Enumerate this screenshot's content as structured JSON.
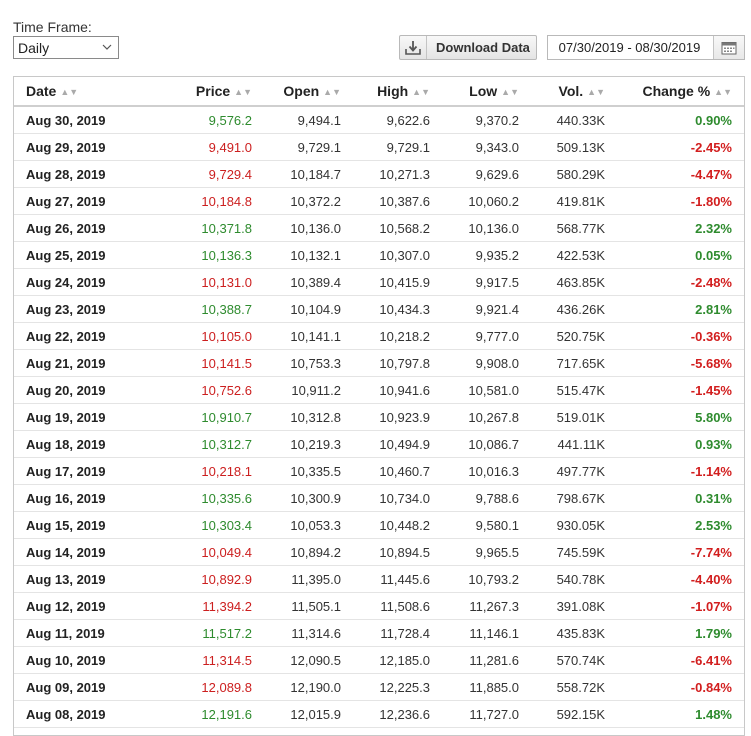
{
  "timeframe": {
    "label": "Time Frame:",
    "selected": "Daily"
  },
  "toolbar": {
    "download_label": "Download Data"
  },
  "date_range": {
    "value": "07/30/2019 - 08/30/2019"
  },
  "colors": {
    "up": "#2e8b2e",
    "down": "#cc1f1f"
  },
  "icons": {
    "download": "download-icon",
    "calendar": "calendar-icon",
    "dropdown": "chevron-down-icon",
    "sort": "sort-icon"
  },
  "table": {
    "headers": [
      "Date",
      "Price",
      "Open",
      "High",
      "Low",
      "Vol.",
      "Change %"
    ],
    "rows": [
      {
        "date": "Aug 30, 2019",
        "price": "9,576.2",
        "open": "9,494.1",
        "high": "9,622.6",
        "low": "9,370.2",
        "vol": "440.33K",
        "change": "0.90%",
        "dir": "up"
      },
      {
        "date": "Aug 29, 2019",
        "price": "9,491.0",
        "open": "9,729.1",
        "high": "9,729.1",
        "low": "9,343.0",
        "vol": "509.13K",
        "change": "-2.45%",
        "dir": "down"
      },
      {
        "date": "Aug 28, 2019",
        "price": "9,729.4",
        "open": "10,184.7",
        "high": "10,271.3",
        "low": "9,629.6",
        "vol": "580.29K",
        "change": "-4.47%",
        "dir": "down"
      },
      {
        "date": "Aug 27, 2019",
        "price": "10,184.8",
        "open": "10,372.2",
        "high": "10,387.6",
        "low": "10,060.2",
        "vol": "419.81K",
        "change": "-1.80%",
        "dir": "down"
      },
      {
        "date": "Aug 26, 2019",
        "price": "10,371.8",
        "open": "10,136.0",
        "high": "10,568.2",
        "low": "10,136.0",
        "vol": "568.77K",
        "change": "2.32%",
        "dir": "up"
      },
      {
        "date": "Aug 25, 2019",
        "price": "10,136.3",
        "open": "10,132.1",
        "high": "10,307.0",
        "low": "9,935.2",
        "vol": "422.53K",
        "change": "0.05%",
        "dir": "up"
      },
      {
        "date": "Aug 24, 2019",
        "price": "10,131.0",
        "open": "10,389.4",
        "high": "10,415.9",
        "low": "9,917.5",
        "vol": "463.85K",
        "change": "-2.48%",
        "dir": "down"
      },
      {
        "date": "Aug 23, 2019",
        "price": "10,388.7",
        "open": "10,104.9",
        "high": "10,434.3",
        "low": "9,921.4",
        "vol": "436.26K",
        "change": "2.81%",
        "dir": "up"
      },
      {
        "date": "Aug 22, 2019",
        "price": "10,105.0",
        "open": "10,141.1",
        "high": "10,218.2",
        "low": "9,777.0",
        "vol": "520.75K",
        "change": "-0.36%",
        "dir": "down"
      },
      {
        "date": "Aug 21, 2019",
        "price": "10,141.5",
        "open": "10,753.3",
        "high": "10,797.8",
        "low": "9,908.0",
        "vol": "717.65K",
        "change": "-5.68%",
        "dir": "down"
      },
      {
        "date": "Aug 20, 2019",
        "price": "10,752.6",
        "open": "10,911.2",
        "high": "10,941.6",
        "low": "10,581.0",
        "vol": "515.47K",
        "change": "-1.45%",
        "dir": "down"
      },
      {
        "date": "Aug 19, 2019",
        "price": "10,910.7",
        "open": "10,312.8",
        "high": "10,923.9",
        "low": "10,267.8",
        "vol": "519.01K",
        "change": "5.80%",
        "dir": "up"
      },
      {
        "date": "Aug 18, 2019",
        "price": "10,312.7",
        "open": "10,219.3",
        "high": "10,494.9",
        "low": "10,086.7",
        "vol": "441.11K",
        "change": "0.93%",
        "dir": "up"
      },
      {
        "date": "Aug 17, 2019",
        "price": "10,218.1",
        "open": "10,335.5",
        "high": "10,460.7",
        "low": "10,016.3",
        "vol": "497.77K",
        "change": "-1.14%",
        "dir": "down"
      },
      {
        "date": "Aug 16, 2019",
        "price": "10,335.6",
        "open": "10,300.9",
        "high": "10,734.0",
        "low": "9,788.6",
        "vol": "798.67K",
        "change": "0.31%",
        "dir": "up"
      },
      {
        "date": "Aug 15, 2019",
        "price": "10,303.4",
        "open": "10,053.3",
        "high": "10,448.2",
        "low": "9,580.1",
        "vol": "930.05K",
        "change": "2.53%",
        "dir": "up"
      },
      {
        "date": "Aug 14, 2019",
        "price": "10,049.4",
        "open": "10,894.2",
        "high": "10,894.5",
        "low": "9,965.5",
        "vol": "745.59K",
        "change": "-7.74%",
        "dir": "down"
      },
      {
        "date": "Aug 13, 2019",
        "price": "10,892.9",
        "open": "11,395.0",
        "high": "11,445.6",
        "low": "10,793.2",
        "vol": "540.78K",
        "change": "-4.40%",
        "dir": "down"
      },
      {
        "date": "Aug 12, 2019",
        "price": "11,394.2",
        "open": "11,505.1",
        "high": "11,508.6",
        "low": "11,267.3",
        "vol": "391.08K",
        "change": "-1.07%",
        "dir": "down"
      },
      {
        "date": "Aug 11, 2019",
        "price": "11,517.2",
        "open": "11,314.6",
        "high": "11,728.4",
        "low": "11,146.1",
        "vol": "435.83K",
        "change": "1.79%",
        "dir": "up"
      },
      {
        "date": "Aug 10, 2019",
        "price": "11,314.5",
        "open": "12,090.5",
        "high": "12,185.0",
        "low": "11,281.6",
        "vol": "570.74K",
        "change": "-6.41%",
        "dir": "down"
      },
      {
        "date": "Aug 09, 2019",
        "price": "12,089.8",
        "open": "12,190.0",
        "high": "12,225.3",
        "low": "11,885.0",
        "vol": "558.72K",
        "change": "-0.84%",
        "dir": "down"
      },
      {
        "date": "Aug 08, 2019",
        "price": "12,191.6",
        "open": "12,015.9",
        "high": "12,236.6",
        "low": "11,727.0",
        "vol": "592.15K",
        "change": "1.48%",
        "dir": "up"
      }
    ]
  }
}
